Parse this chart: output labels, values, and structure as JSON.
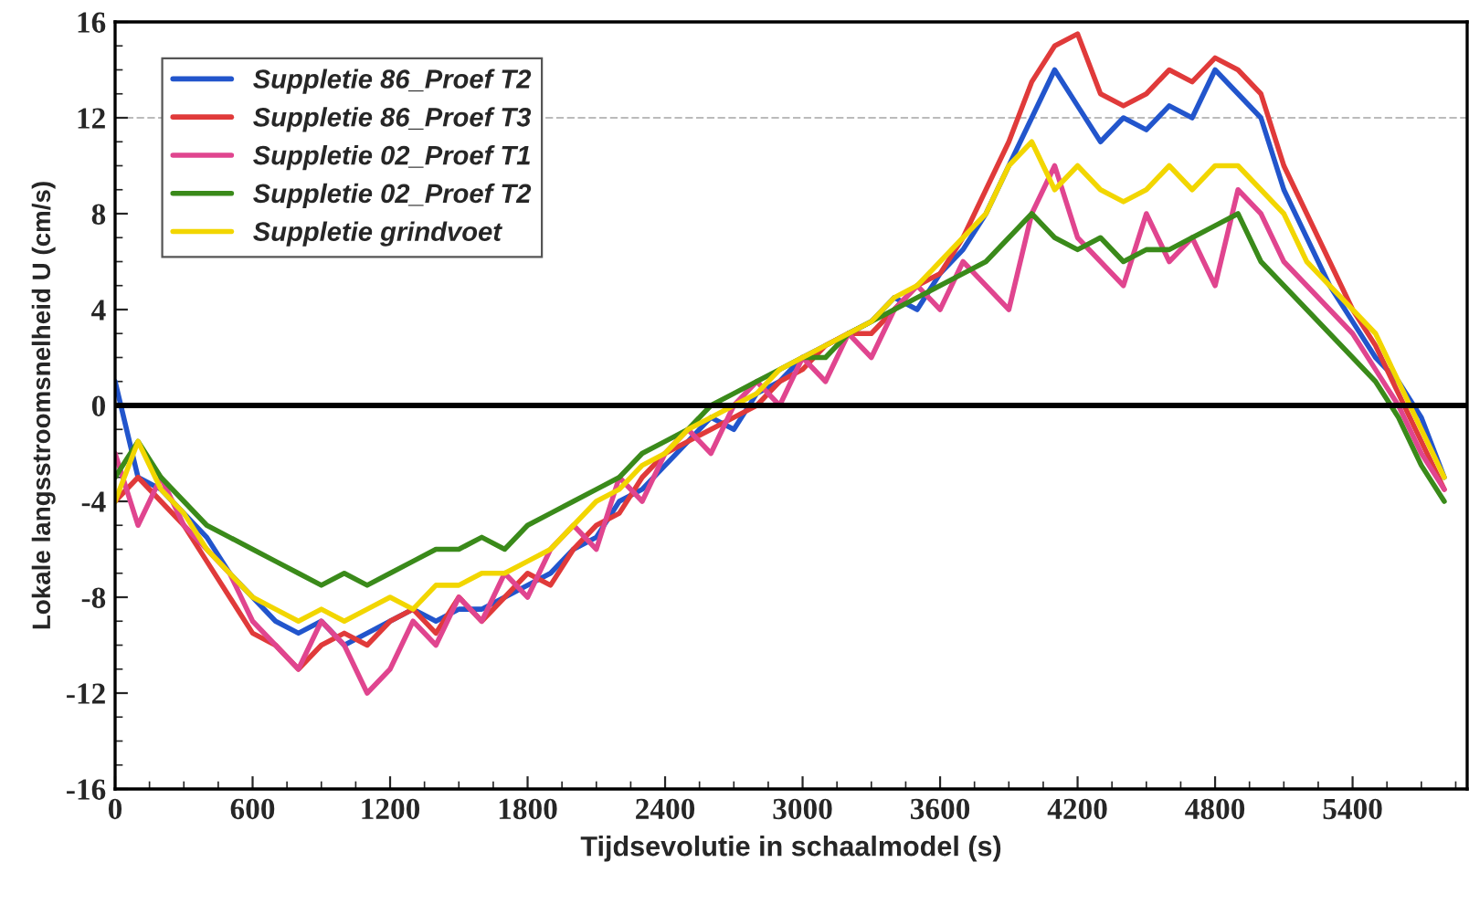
{
  "chart_data": {
    "type": "line",
    "xlabel": "Tijdsevolutie in schaalmodel (s)",
    "ylabel": "Lokale langsstroomsnelheid U (cm/s)",
    "x": [
      0,
      100,
      200,
      300,
      400,
      500,
      600,
      700,
      800,
      900,
      1000,
      1100,
      1200,
      1300,
      1400,
      1500,
      1600,
      1700,
      1800,
      1900,
      2000,
      2100,
      2200,
      2300,
      2400,
      2500,
      2600,
      2700,
      2800,
      2900,
      3000,
      3100,
      3200,
      3300,
      3400,
      3500,
      3600,
      3700,
      3800,
      3900,
      4000,
      4100,
      4200,
      4300,
      4400,
      4500,
      4600,
      4700,
      4800,
      4900,
      5000,
      5100,
      5200,
      5300,
      5400,
      5500,
      5600,
      5700,
      5800
    ],
    "series": [
      {
        "name": "Suppletie 86_Proef T2",
        "color": "#2255cc",
        "values": [
          1,
          -3,
          -3.5,
          -4.5,
          -5.5,
          -7,
          -8,
          -9,
          -9.5,
          -9,
          -10,
          -9.5,
          -9,
          -8.5,
          -9,
          -8.5,
          -8.5,
          -8,
          -7.5,
          -7,
          -6,
          -5.5,
          -4,
          -3.5,
          -2.5,
          -1.5,
          -0.5,
          -1,
          0.5,
          1,
          2,
          2.5,
          3,
          3.5,
          4.5,
          4,
          5.5,
          6.5,
          8,
          10,
          12,
          14,
          12.5,
          11,
          12,
          11.5,
          12.5,
          12,
          14,
          13,
          12,
          9,
          7,
          5,
          3.5,
          2,
          1,
          -0.5,
          -3
        ]
      },
      {
        "name": "Suppletie 86_Proef T3",
        "color": "#e03a3a",
        "values": [
          -4,
          -3,
          -4,
          -5,
          -6.5,
          -8,
          -9.5,
          -10,
          -11,
          -10,
          -9.5,
          -10,
          -9,
          -8.5,
          -9.5,
          -8,
          -9,
          -8,
          -7,
          -7.5,
          -6,
          -5,
          -4.5,
          -3,
          -2,
          -1.5,
          -1,
          -0.5,
          0,
          1,
          1.5,
          2.5,
          3,
          3,
          4,
          5,
          5.5,
          7,
          9,
          11,
          13.5,
          15,
          15.5,
          13,
          12.5,
          13,
          14,
          13.5,
          14.5,
          14,
          13,
          10,
          8,
          6,
          4,
          2.5,
          0.5,
          -1.5,
          -3.5
        ]
      },
      {
        "name": "Suppletie 02_Proef T1",
        "color": "#e0458f",
        "values": [
          -2,
          -5,
          -3,
          -5,
          -6,
          -7,
          -9,
          -10,
          -11,
          -9,
          -10,
          -12,
          -11,
          -9,
          -10,
          -8,
          -9,
          -7,
          -8,
          -6,
          -5,
          -6,
          -3,
          -4,
          -2,
          -1,
          -2,
          0,
          1,
          0,
          2,
          1,
          3,
          2,
          4,
          5,
          4,
          6,
          5,
          4,
          8,
          10,
          7,
          6,
          5,
          8,
          6,
          7,
          5,
          9,
          8,
          6,
          5,
          4,
          3,
          1.5,
          0,
          -2,
          -3.5
        ]
      },
      {
        "name": "Suppletie 02_Proef T2",
        "color": "#3a8a1a",
        "values": [
          -3,
          -1.5,
          -3,
          -4,
          -5,
          -5.5,
          -6,
          -6.5,
          -7,
          -7.5,
          -7,
          -7.5,
          -7,
          -6.5,
          -6,
          -6,
          -5.5,
          -6,
          -5,
          -4.5,
          -4,
          -3.5,
          -3,
          -2,
          -1.5,
          -1,
          0,
          0.5,
          1,
          1.5,
          2,
          2,
          3,
          3.5,
          4,
          4.5,
          5,
          5.5,
          6,
          7,
          8,
          7,
          6.5,
          7,
          6,
          6.5,
          6.5,
          7,
          7.5,
          8,
          6,
          5,
          4,
          3,
          2,
          1,
          -0.5,
          -2.5,
          -4
        ]
      },
      {
        "name": "Suppletie grindvoet",
        "color": "#f2d600",
        "values": [
          -4,
          -1.5,
          -3.5,
          -4.5,
          -6,
          -7,
          -8,
          -8.5,
          -9,
          -8.5,
          -9,
          -8.5,
          -8,
          -8.5,
          -7.5,
          -7.5,
          -7,
          -7,
          -6.5,
          -6,
          -5,
          -4,
          -3.5,
          -2.5,
          -2,
          -1,
          -0.5,
          0,
          0.5,
          1.5,
          2,
          2.5,
          3,
          3.5,
          4.5,
          5,
          6,
          7,
          8,
          10,
          11,
          9,
          10,
          9,
          8.5,
          9,
          10,
          9,
          10,
          10,
          9,
          8,
          6,
          5,
          4,
          3,
          1,
          -1,
          -3
        ]
      }
    ],
    "xlim": [
      0,
      5900
    ],
    "xticks": [
      0,
      600,
      1200,
      1800,
      2400,
      3000,
      3600,
      4200,
      4800,
      5400
    ],
    "ylim": [
      -16,
      16
    ],
    "yticks": [
      -16,
      -12,
      -8,
      -4,
      0,
      4,
      8,
      12,
      16
    ],
    "ref_lines": [
      {
        "axis": "y",
        "value": 0,
        "color": "#000000",
        "line_style": "solid"
      },
      {
        "axis": "y",
        "value": 12,
        "color": "#bbbbbb",
        "line_style": "dashed"
      }
    ],
    "grid": false,
    "legend": "top left",
    "marker": "none",
    "line_style": "solid"
  }
}
